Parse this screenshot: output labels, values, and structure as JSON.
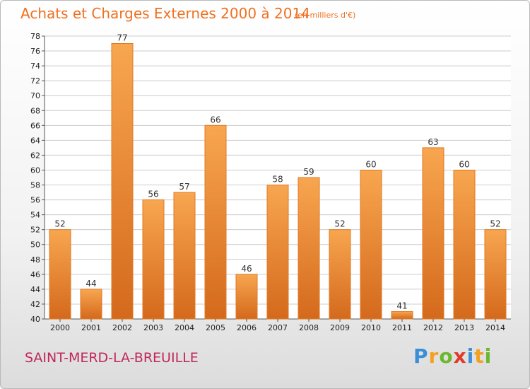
{
  "title": "Achats et Charges Externes 2000 à 2014",
  "subtitle": "(en milliers d'€)",
  "commune": "SAINT-MERD-LA-BREUILLE",
  "logo": {
    "letters": [
      "P",
      "r",
      "o",
      "x",
      "i",
      "t",
      "i"
    ],
    "colors": [
      "#3a8fd8",
      "#f4a020",
      "#6cb82c",
      "#e03a2a",
      "#3a8fd8",
      "#f4a020",
      "#6cb82c"
    ]
  },
  "colors": {
    "title": "#f07020",
    "commune": "#c0285a",
    "bar_top": "#f8a650",
    "bar_bottom": "#d4691c",
    "grid": "#cccccc"
  },
  "chart_data": {
    "type": "bar",
    "categories": [
      "2000",
      "2001",
      "2002",
      "2003",
      "2004",
      "2005",
      "2006",
      "2007",
      "2008",
      "2009",
      "2010",
      "2011",
      "2012",
      "2013",
      "2014"
    ],
    "values": [
      52,
      44,
      77,
      56,
      57,
      66,
      46,
      58,
      59,
      52,
      60,
      41,
      63,
      60,
      52
    ],
    "ylim": [
      40,
      78
    ],
    "yticks": [
      40,
      42,
      44,
      46,
      48,
      50,
      52,
      54,
      56,
      58,
      60,
      62,
      64,
      66,
      68,
      70,
      72,
      74,
      76,
      78
    ],
    "grid": true,
    "data_labels": true
  }
}
